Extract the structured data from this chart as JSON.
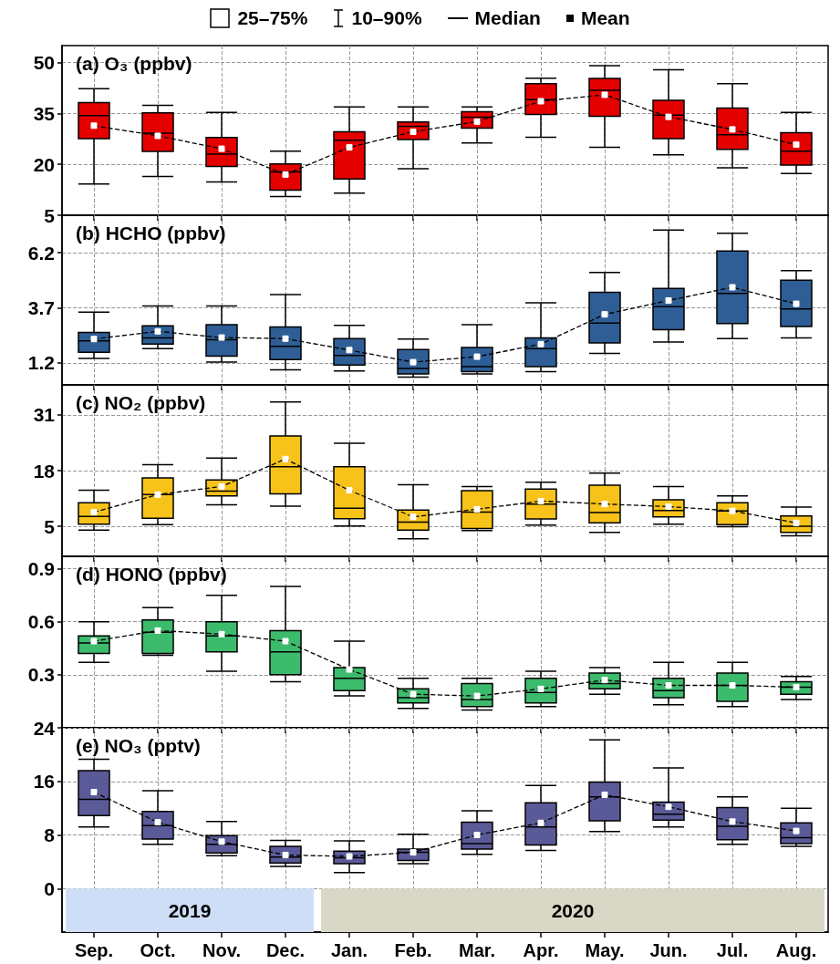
{
  "chart_data": [
    {
      "type": "box",
      "title": "(a) O₃ (ppbv)",
      "annotations": [
        "25–75%",
        "10–90%",
        "Median",
        "Mean"
      ],
      "categories": [
        null,
        null,
        null,
        null,
        null,
        null,
        null,
        null,
        null,
        null,
        null,
        null
      ],
      "ylim": [
        5,
        55
      ],
      "yticks": [
        5,
        20,
        35,
        50
      ],
      "grid": true,
      "marker": "square",
      "line_style": "dashed",
      "tick_labels": "y",
      "series": [
        {
          "color": "#e50000",
          "boxes": [
            {
              "low": 14.2,
              "q1": 27.6,
              "median": 34.4,
              "q3": 38.2,
              "high": 42.3
            },
            {
              "low": 16.4,
              "q1": 23.8,
              "median": 29.2,
              "q3": 35.2,
              "high": 37.4
            },
            {
              "low": 14.8,
              "q1": 19.4,
              "median": 23.0,
              "q3": 27.9,
              "high": 35.3
            },
            {
              "low": 10.5,
              "q1": 12.4,
              "median": 17.8,
              "q3": 20.1,
              "high": 23.9
            },
            {
              "low": 11.5,
              "q1": 15.7,
              "median": 27.1,
              "q3": 29.6,
              "high": 36.9
            },
            {
              "low": 18.7,
              "q1": 27.3,
              "median": 31.2,
              "q3": 32.5,
              "high": 36.9
            },
            {
              "low": 26.3,
              "q1": 30.7,
              "median": 33.9,
              "q3": 35.5,
              "high": 36.9
            },
            {
              "low": 28.0,
              "q1": 34.7,
              "median": 39.1,
              "q3": 43.8,
              "high": 45.4
            },
            {
              "low": 25.0,
              "q1": 34.2,
              "median": 41.8,
              "q3": 45.3,
              "high": 49.1
            },
            {
              "low": 22.8,
              "q1": 27.6,
              "median": 34.5,
              "q3": 38.9,
              "high": 47.9
            },
            {
              "low": 19.0,
              "q1": 24.4,
              "median": 28.7,
              "q3": 36.6,
              "high": 43.8
            },
            {
              "low": 17.3,
              "q1": 19.8,
              "median": 23.9,
              "q3": 29.3,
              "high": 35.3
            }
          ]
        },
        {
          "type": "line",
          "color": "#000000",
          "values": [
            31.4,
            28.4,
            24.6,
            17.0,
            25.0,
            29.6,
            32.6,
            38.6,
            40.5,
            34.0,
            30.3,
            25.8
          ]
        }
      ]
    },
    {
      "type": "box",
      "title": "(b) HCHO (ppbv)",
      "categories": [
        null,
        null,
        null,
        null,
        null,
        null,
        null,
        null,
        null,
        null,
        null,
        null
      ],
      "ylim": [
        0.2,
        7.9
      ],
      "yticks": [
        1.2,
        3.7,
        6.2
      ],
      "grid": true,
      "marker": "square",
      "line_style": "dashed",
      "tick_labels": "y",
      "series": [
        {
          "color": "#2e5e95",
          "boxes": [
            {
              "low": 1.4,
              "q1": 1.68,
              "median": 2.2,
              "q3": 2.58,
              "high": 3.5
            },
            {
              "low": 1.85,
              "q1": 2.05,
              "median": 2.33,
              "q3": 2.88,
              "high": 3.78
            },
            {
              "low": 1.23,
              "q1": 1.5,
              "median": 2.25,
              "q3": 2.93,
              "high": 3.78
            },
            {
              "low": 0.88,
              "q1": 1.35,
              "median": 1.95,
              "q3": 2.83,
              "high": 4.3
            },
            {
              "low": 0.83,
              "q1": 1.1,
              "median": 1.53,
              "q3": 2.3,
              "high": 2.9
            },
            {
              "low": 0.55,
              "q1": 0.7,
              "median": 0.95,
              "q3": 1.8,
              "high": 2.28
            },
            {
              "low": 0.7,
              "q1": 0.8,
              "median": 1.03,
              "q3": 1.9,
              "high": 2.93
            },
            {
              "low": 0.8,
              "q1": 1.03,
              "median": 1.85,
              "q3": 2.33,
              "high": 3.93
            },
            {
              "low": 1.63,
              "q1": 2.1,
              "median": 3.0,
              "q3": 4.4,
              "high": 5.3
            },
            {
              "low": 2.15,
              "q1": 2.7,
              "median": 3.75,
              "q3": 4.58,
              "high": 7.23
            },
            {
              "low": 2.3,
              "q1": 2.98,
              "median": 4.35,
              "q3": 6.28,
              "high": 7.08
            },
            {
              "low": 2.33,
              "q1": 2.85,
              "median": 3.65,
              "q3": 4.95,
              "high": 5.38
            }
          ]
        },
        {
          "type": "line",
          "color": "#000000",
          "values": [
            2.28,
            2.63,
            2.35,
            2.3,
            1.78,
            1.23,
            1.48,
            2.05,
            3.4,
            4.03,
            4.63,
            3.88
          ]
        }
      ]
    },
    {
      "type": "box",
      "title": "(c) NO₂ (ppbv)",
      "categories": [
        null,
        null,
        null,
        null,
        null,
        null,
        null,
        null,
        null,
        null,
        null,
        null
      ],
      "ylim": [
        -2,
        38
      ],
      "yticks": [
        5,
        18,
        31
      ],
      "grid": true,
      "marker": "square",
      "line_style": "dashed",
      "tick_labels": "y",
      "series": [
        {
          "color": "#f7c21a",
          "boxes": [
            {
              "low": 4.1,
              "q1": 5.5,
              "median": 7.3,
              "q3": 10.5,
              "high": 13.4
            },
            {
              "low": 5.4,
              "q1": 6.9,
              "median": 12.4,
              "q3": 16.3,
              "high": 19.4
            },
            {
              "low": 10.0,
              "q1": 12.1,
              "median": 13.2,
              "q3": 15.8,
              "high": 20.9
            },
            {
              "low": 9.7,
              "q1": 12.6,
              "median": 18.9,
              "q3": 26.1,
              "high": 34.0
            },
            {
              "low": 5.1,
              "q1": 6.8,
              "median": 9.2,
              "q3": 18.9,
              "high": 24.4
            },
            {
              "low": 2.1,
              "q1": 4.1,
              "median": 6.0,
              "q3": 8.8,
              "high": 14.7
            },
            {
              "low": 4.0,
              "q1": 4.5,
              "median": 8.3,
              "q3": 13.3,
              "high": 14.3
            },
            {
              "low": 5.3,
              "q1": 6.7,
              "median": 10.2,
              "q3": 13.7,
              "high": 15.3
            },
            {
              "low": 3.6,
              "q1": 5.8,
              "median": 8.2,
              "q3": 14.6,
              "high": 17.4
            },
            {
              "low": 5.5,
              "q1": 7.2,
              "median": 8.7,
              "q3": 11.2,
              "high": 14.3
            },
            {
              "low": 4.9,
              "q1": 5.4,
              "median": 8.6,
              "q3": 10.5,
              "high": 12.1
            },
            {
              "low": 2.8,
              "q1": 3.6,
              "median": 5.0,
              "q3": 7.4,
              "high": 9.5
            }
          ]
        },
        {
          "type": "line",
          "color": "#000000",
          "values": [
            8.3,
            12.4,
            14.3,
            20.7,
            13.4,
            7.2,
            9.0,
            10.9,
            10.2,
            9.6,
            8.6,
            5.8
          ]
        }
      ]
    },
    {
      "type": "box",
      "title": "(d) HONO (ppbv)",
      "categories": [
        null,
        null,
        null,
        null,
        null,
        null,
        null,
        null,
        null,
        null,
        null,
        null
      ],
      "ylim": [
        0,
        0.97
      ],
      "yticks": [
        0.3,
        0.6,
        0.9
      ],
      "grid": true,
      "marker": "square",
      "line_style": "dashed",
      "tick_labels": "y",
      "series": [
        {
          "color": "#3dbb6c",
          "boxes": [
            {
              "low": 0.37,
              "q1": 0.42,
              "median": 0.48,
              "q3": 0.52,
              "high": 0.6
            },
            {
              "low": 0.41,
              "q1": 0.42,
              "median": 0.54,
              "q3": 0.61,
              "high": 0.68
            },
            {
              "low": 0.32,
              "q1": 0.43,
              "median": 0.52,
              "q3": 0.6,
              "high": 0.75
            },
            {
              "low": 0.26,
              "q1": 0.3,
              "median": 0.43,
              "q3": 0.55,
              "high": 0.8
            },
            {
              "low": 0.18,
              "q1": 0.21,
              "median": 0.28,
              "q3": 0.34,
              "high": 0.49
            },
            {
              "low": 0.11,
              "q1": 0.14,
              "median": 0.17,
              "q3": 0.22,
              "high": 0.28
            },
            {
              "low": 0.1,
              "q1": 0.12,
              "median": 0.16,
              "q3": 0.25,
              "high": 0.28
            },
            {
              "low": 0.12,
              "q1": 0.14,
              "median": 0.2,
              "q3": 0.28,
              "high": 0.32
            },
            {
              "low": 0.19,
              "q1": 0.22,
              "median": 0.25,
              "q3": 0.31,
              "high": 0.34
            },
            {
              "low": 0.13,
              "q1": 0.17,
              "median": 0.21,
              "q3": 0.28,
              "high": 0.37
            },
            {
              "low": 0.12,
              "q1": 0.15,
              "median": 0.24,
              "q3": 0.31,
              "high": 0.37
            },
            {
              "low": 0.16,
              "q1": 0.19,
              "median": 0.23,
              "q3": 0.26,
              "high": 0.29
            }
          ]
        },
        {
          "type": "line",
          "color": "#000000",
          "values": [
            0.49,
            0.55,
            0.53,
            0.49,
            0.33,
            0.19,
            0.18,
            0.22,
            0.27,
            0.24,
            0.24,
            0.23
          ]
        }
      ]
    },
    {
      "type": "box",
      "title": "(e) NO₃ (pptv)",
      "categories": [
        "Sep.",
        "Oct.",
        "Nov.",
        "Dec.",
        "Jan.",
        "Feb.",
        "Mar.",
        "Apr.",
        "May.",
        "Jun.",
        "Jul.",
        "Aug."
      ],
      "ylim": [
        -6.5,
        24
      ],
      "yticks": [
        0,
        8,
        16,
        24
      ],
      "grid": true,
      "marker": "square",
      "line_style": "dashed",
      "bands": [
        {
          "axis": "x",
          "from": "Sep.",
          "to": "Dec.",
          "label": "2019",
          "color": "#cfdef7"
        },
        {
          "axis": "x",
          "from": "Jan.",
          "to": "Aug.",
          "label": "2020",
          "color": "#d9d8c6"
        }
      ],
      "series": [
        {
          "color": "#5a5a98",
          "boxes": [
            {
              "low": 9.2,
              "q1": 10.9,
              "median": 13.3,
              "q3": 17.6,
              "high": 19.3
            },
            {
              "low": 6.6,
              "q1": 7.4,
              "median": 9.4,
              "q3": 11.5,
              "high": 14.6
            },
            {
              "low": 4.9,
              "q1": 5.3,
              "median": 6.6,
              "q3": 7.9,
              "high": 10.0
            },
            {
              "low": 3.3,
              "q1": 3.8,
              "median": 4.7,
              "q3": 6.3,
              "high": 7.2
            },
            {
              "low": 2.4,
              "q1": 3.7,
              "median": 4.6,
              "q3": 5.6,
              "high": 7.1
            },
            {
              "low": 3.7,
              "q1": 4.2,
              "median": 5.4,
              "q3": 5.9,
              "high": 8.1
            },
            {
              "low": 5.1,
              "q1": 5.9,
              "median": 6.7,
              "q3": 9.9,
              "high": 11.6
            },
            {
              "low": 5.7,
              "q1": 6.5,
              "median": 9.2,
              "q3": 12.8,
              "high": 15.4
            },
            {
              "low": 8.5,
              "q1": 10.1,
              "median": 13.7,
              "q3": 15.9,
              "high": 22.2
            },
            {
              "low": 9.2,
              "q1": 10.2,
              "median": 11.1,
              "q3": 12.9,
              "high": 18.0
            },
            {
              "low": 6.6,
              "q1": 7.3,
              "median": 9.3,
              "q3": 12.1,
              "high": 13.7
            },
            {
              "low": 6.3,
              "q1": 6.7,
              "median": 7.6,
              "q3": 9.8,
              "high": 12.0
            }
          ]
        },
        {
          "type": "line",
          "color": "#000000",
          "values": [
            14.4,
            9.9,
            7.0,
            5.0,
            4.8,
            5.4,
            8.0,
            9.8,
            14.0,
            12.2,
            10.0,
            8.6
          ]
        }
      ]
    }
  ]
}
